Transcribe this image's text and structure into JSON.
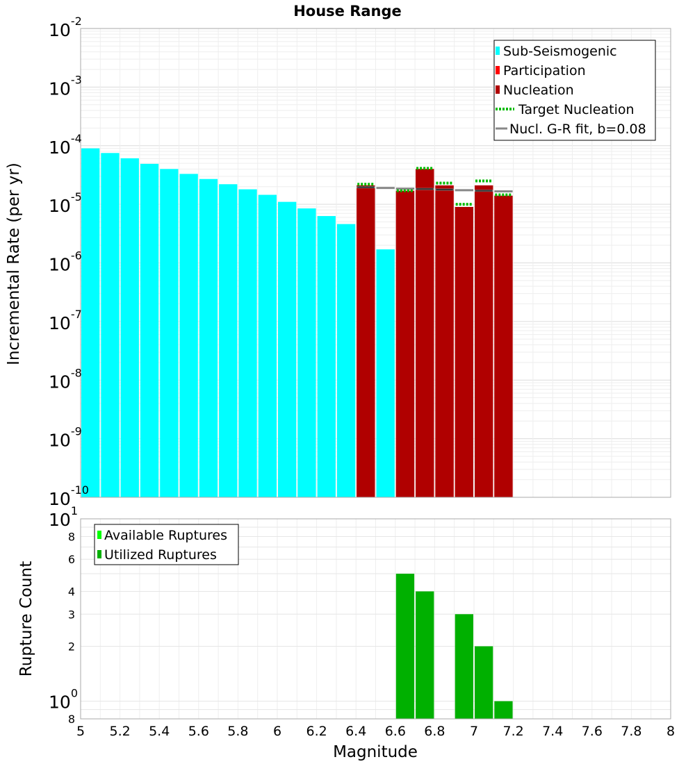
{
  "chart_data": [
    {
      "type": "bar",
      "title": "House Range",
      "ylabel": "Incremental Rate (per yr)",
      "yscale": "log",
      "ylim": [
        1e-10,
        0.01
      ],
      "xlim": [
        5,
        8
      ],
      "grid": true,
      "legend_position": "top-right",
      "y_tick_labels": [
        {
          "base": "10",
          "exp": "-10"
        },
        {
          "base": "10",
          "exp": "-9"
        },
        {
          "base": "10",
          "exp": "-8"
        },
        {
          "base": "10",
          "exp": "-7"
        },
        {
          "base": "10",
          "exp": "-6"
        },
        {
          "base": "10",
          "exp": "-5"
        },
        {
          "base": "10",
          "exp": "-4"
        },
        {
          "base": "10",
          "exp": "-3"
        },
        {
          "base": "10",
          "exp": "-2"
        }
      ],
      "series": [
        {
          "name": "Sub-Seismogenic",
          "color": "#00ffff",
          "points": [
            {
              "x": 5.05,
              "y": 9e-05
            },
            {
              "x": 5.15,
              "y": 7.5e-05
            },
            {
              "x": 5.25,
              "y": 6.1e-05
            },
            {
              "x": 5.35,
              "y": 4.9e-05
            },
            {
              "x": 5.45,
              "y": 4e-05
            },
            {
              "x": 5.55,
              "y": 3.3e-05
            },
            {
              "x": 5.65,
              "y": 2.7e-05
            },
            {
              "x": 5.75,
              "y": 2.2e-05
            },
            {
              "x": 5.85,
              "y": 1.8e-05
            },
            {
              "x": 5.95,
              "y": 1.45e-05
            },
            {
              "x": 6.05,
              "y": 1.1e-05
            },
            {
              "x": 6.15,
              "y": 8.5e-06
            },
            {
              "x": 6.25,
              "y": 6.3e-06
            },
            {
              "x": 6.35,
              "y": 4.6e-06
            },
            {
              "x": 6.55,
              "y": 1.7e-06
            }
          ]
        },
        {
          "name": "Participation",
          "color": "#ff0000",
          "points": [
            {
              "x": 6.45,
              "y": 2.1e-05
            },
            {
              "x": 6.65,
              "y": 1.7e-05
            },
            {
              "x": 6.75,
              "y": 4e-05
            },
            {
              "x": 6.85,
              "y": 2.1e-05
            },
            {
              "x": 6.95,
              "y": 9e-06
            },
            {
              "x": 7.05,
              "y": 2.1e-05
            },
            {
              "x": 7.15,
              "y": 1.4e-05
            }
          ]
        },
        {
          "name": "Nucleation",
          "color": "#b00000",
          "points": [
            {
              "x": 6.45,
              "y": 2.1e-05
            },
            {
              "x": 6.65,
              "y": 1.7e-05
            },
            {
              "x": 6.75,
              "y": 4e-05
            },
            {
              "x": 6.85,
              "y": 2.1e-05
            },
            {
              "x": 6.95,
              "y": 9e-06
            },
            {
              "x": 7.05,
              "y": 2.1e-05
            },
            {
              "x": 7.15,
              "y": 1.4e-05
            }
          ]
        },
        {
          "name": "Target Nucleation",
          "color": "#00bb00",
          "style": "dotted",
          "points": [
            {
              "x": 6.45,
              "y": 2.2e-05
            },
            {
              "x": 6.65,
              "y": 1.7e-05
            },
            {
              "x": 6.75,
              "y": 4.1e-05
            },
            {
              "x": 6.85,
              "y": 2.3e-05
            },
            {
              "x": 6.95,
              "y": 1e-05
            },
            {
              "x": 7.05,
              "y": 2.5e-05
            },
            {
              "x": 7.15,
              "y": 1.45e-05
            }
          ]
        },
        {
          "name": "Nucl. G-R fit, b=0.08",
          "color": "#888888",
          "style": "solid",
          "points": [
            {
              "x": 6.45,
              "y": 1.95e-05
            },
            {
              "x": 6.55,
              "y": 1.9e-05
            },
            {
              "x": 6.65,
              "y": 1.85e-05
            },
            {
              "x": 6.75,
              "y": 1.82e-05
            },
            {
              "x": 6.85,
              "y": 1.78e-05
            },
            {
              "x": 6.95,
              "y": 1.74e-05
            },
            {
              "x": 7.05,
              "y": 1.7e-05
            },
            {
              "x": 7.15,
              "y": 1.66e-05
            }
          ]
        }
      ]
    },
    {
      "type": "bar",
      "xlabel": "Magnitude",
      "ylabel": "Rupture Count",
      "yscale": "log",
      "ylim": [
        0.8,
        10
      ],
      "xlim": [
        5,
        8
      ],
      "grid": true,
      "legend_position": "top-left",
      "x_tick_labels": [
        "5",
        "5.2",
        "5.4",
        "5.6",
        "5.8",
        "6",
        "6.2",
        "6.4",
        "6.6",
        "6.8",
        "7",
        "7.2",
        "7.4",
        "7.6",
        "7.8",
        "8"
      ],
      "y_minor_labels": [
        "8",
        "2",
        "3",
        "4",
        "6",
        "8"
      ],
      "y_major_labels": [
        {
          "base": "10",
          "exp": "0"
        },
        {
          "base": "10",
          "exp": "1"
        }
      ],
      "series": [
        {
          "name": "Available Ruptures",
          "color": "#00ff00",
          "points": [
            {
              "x": 6.65,
              "y": 5
            },
            {
              "x": 6.75,
              "y": 4
            },
            {
              "x": 6.95,
              "y": 3
            },
            {
              "x": 7.05,
              "y": 2
            },
            {
              "x": 7.15,
              "y": 1
            }
          ]
        },
        {
          "name": "Utilized Ruptures",
          "color": "#00b000",
          "points": [
            {
              "x": 6.65,
              "y": 5
            },
            {
              "x": 6.75,
              "y": 4
            },
            {
              "x": 6.95,
              "y": 3
            },
            {
              "x": 7.05,
              "y": 2
            },
            {
              "x": 7.15,
              "y": 1
            }
          ]
        }
      ]
    }
  ]
}
